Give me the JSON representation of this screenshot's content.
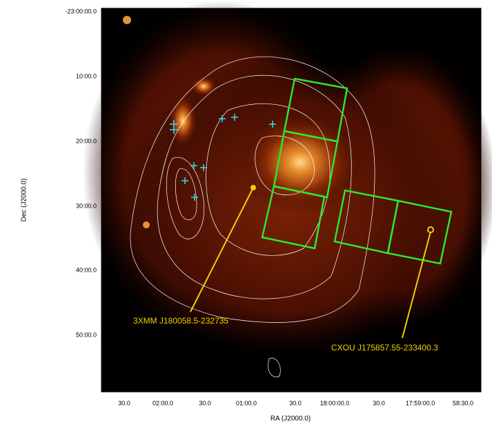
{
  "axes": {
    "x_label": "RA (J2000.0)",
    "y_label": "Dec (J2000.0)",
    "x_ticks": [
      "30.0",
      "02:00.0",
      "30.0",
      "01:00.0",
      "30.0",
      "18:00:00.0",
      "30.0",
      "17:59:00.0",
      "58:30.0"
    ],
    "y_ticks": [
      "-23:00:00.0",
      "10:00.0",
      "20:00.0",
      "30:00.0",
      "40:00.0",
      "50:00.0"
    ]
  },
  "annotations": [
    "3XMM J180058.5-232735",
    "CXOU J175857.55-233400.3"
  ]
}
